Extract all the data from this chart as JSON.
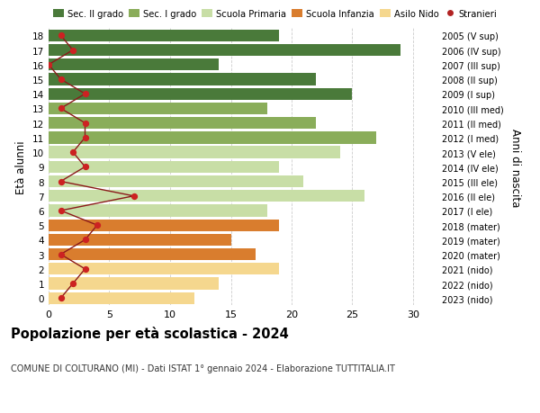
{
  "ages": [
    0,
    1,
    2,
    3,
    4,
    5,
    6,
    7,
    8,
    9,
    10,
    11,
    12,
    13,
    14,
    15,
    16,
    17,
    18
  ],
  "right_labels": [
    "2023 (nido)",
    "2022 (nido)",
    "2021 (nido)",
    "2020 (mater)",
    "2019 (mater)",
    "2018 (mater)",
    "2017 (I ele)",
    "2016 (II ele)",
    "2015 (III ele)",
    "2014 (IV ele)",
    "2013 (V ele)",
    "2012 (I med)",
    "2011 (II med)",
    "2010 (III med)",
    "2009 (I sup)",
    "2008 (II sup)",
    "2007 (III sup)",
    "2006 (IV sup)",
    "2005 (V sup)"
  ],
  "bar_values": [
    12,
    14,
    19,
    17,
    15,
    19,
    18,
    26,
    21,
    19,
    24,
    27,
    22,
    18,
    25,
    22,
    14,
    29,
    19
  ],
  "bar_colors": [
    "#f5d78e",
    "#f5d78e",
    "#f5d78e",
    "#d97d2e",
    "#d97d2e",
    "#d97d2e",
    "#c8dea6",
    "#c8dea6",
    "#c8dea6",
    "#c8dea6",
    "#c8dea6",
    "#8aad5a",
    "#8aad5a",
    "#8aad5a",
    "#4a7a3a",
    "#4a7a3a",
    "#4a7a3a",
    "#4a7a3a",
    "#4a7a3a"
  ],
  "stranieri_values": [
    1,
    2,
    3,
    1,
    3,
    4,
    1,
    7,
    1,
    3,
    2,
    3,
    3,
    1,
    3,
    1,
    0,
    2,
    1
  ],
  "xlim": [
    0,
    32
  ],
  "ylabel_left": "Età alunni",
  "ylabel_right": "Anni di nascita",
  "title": "Popolazione per età scolastica - 2024",
  "subtitle": "COMUNE DI COLTURANO (MI) - Dati ISTAT 1° gennaio 2024 - Elaborazione TUTTITALIA.IT",
  "legend_labels": [
    "Sec. II grado",
    "Sec. I grado",
    "Scuola Primaria",
    "Scuola Infanzia",
    "Asilo Nido",
    "Stranieri"
  ],
  "legend_colors": [
    "#4a7a3a",
    "#8aad5a",
    "#c8dea6",
    "#d97d2e",
    "#f5d78e",
    "#b22222"
  ],
  "bg_color": "#ffffff",
  "grid_color": "#cccccc",
  "xticks": [
    0,
    5,
    10,
    15,
    20,
    25,
    30
  ],
  "line_color": "#8b1a1a",
  "dot_color": "#cc2222"
}
